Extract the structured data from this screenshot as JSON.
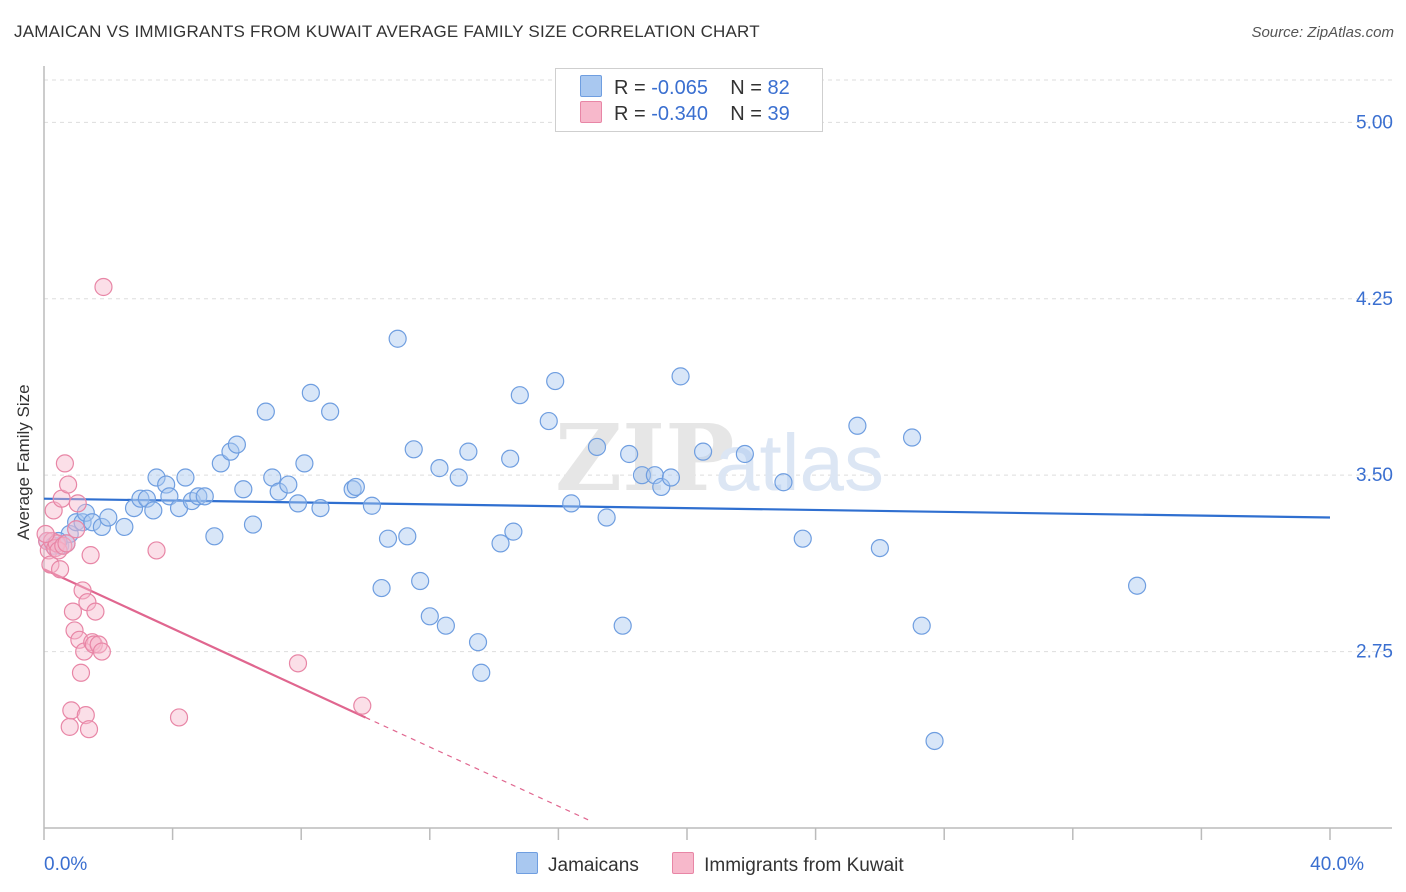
{
  "header": {
    "title": "JAMAICAN VS IMMIGRANTS FROM KUWAIT AVERAGE FAMILY SIZE CORRELATION CHART",
    "source": "Source: ZipAtlas.com"
  },
  "watermark": {
    "zip": "ZIP",
    "atlas": "atlas"
  },
  "legend": {
    "rows": [
      {
        "r_label": "R =",
        "r_value": "-0.065",
        "n_label": "N =",
        "n_value": "82",
        "color": "#a9c8f0"
      },
      {
        "r_label": "R =",
        "r_value": "-0.340",
        "n_label": "N =",
        "n_value": "39",
        "color": "#f7b8cb"
      }
    ]
  },
  "bottom_legend": [
    {
      "label": "Jamaicans",
      "color": "#a9c8f0"
    },
    {
      "label": "Immigrants from Kuwait",
      "color": "#f7b8cb"
    }
  ],
  "colors": {
    "blue_fill": "#a9c8f0",
    "blue_stroke": "#6f9ee0",
    "blue_line": "#2f6fd0",
    "pink_fill": "#f7b8cb",
    "pink_stroke": "#e886a6",
    "pink_line": "#e0668f",
    "tick_text": "#3a6fd0",
    "grid": "#dddddd"
  },
  "chart_data": {
    "type": "scatter",
    "title": "JAMAICAN VS IMMIGRANTS FROM KUWAIT AVERAGE FAMILY SIZE CORRELATION CHART",
    "xlabel": "",
    "ylabel": "Average Family Size",
    "xlim": [
      0,
      40
    ],
    "ylim": [
      2.0,
      5.18
    ],
    "x_tick_labels": [
      {
        "value": 0,
        "label": "0.0%"
      },
      {
        "value": 40,
        "label": "40.0%"
      }
    ],
    "y_ticks": [
      {
        "value": 5.0,
        "label": "5.00"
      },
      {
        "value": 4.25,
        "label": "4.25"
      },
      {
        "value": 3.5,
        "label": "3.50"
      },
      {
        "value": 2.75,
        "label": "2.75"
      }
    ],
    "series": [
      {
        "name": "Jamaicans",
        "r": -0.065,
        "n": 82,
        "trend": {
          "x": [
            0,
            40
          ],
          "y": [
            3.4,
            3.32
          ]
        },
        "points": [
          [
            0.1,
            3.22
          ],
          [
            0.3,
            3.2
          ],
          [
            0.5,
            3.2
          ],
          [
            0.7,
            3.21
          ],
          [
            0.8,
            3.25
          ],
          [
            1.0,
            3.3
          ],
          [
            1.2,
            3.3
          ],
          [
            1.3,
            3.34
          ],
          [
            1.5,
            3.3
          ],
          [
            1.8,
            3.28
          ],
          [
            2.0,
            3.32
          ],
          [
            2.5,
            3.28
          ],
          [
            2.8,
            3.36
          ],
          [
            3.0,
            3.4
          ],
          [
            3.2,
            3.4
          ],
          [
            3.4,
            3.35
          ],
          [
            3.5,
            3.49
          ],
          [
            3.8,
            3.46
          ],
          [
            3.9,
            3.41
          ],
          [
            4.2,
            3.36
          ],
          [
            4.4,
            3.49
          ],
          [
            4.6,
            3.39
          ],
          [
            4.8,
            3.41
          ],
          [
            5.0,
            3.41
          ],
          [
            5.3,
            3.24
          ],
          [
            5.5,
            3.55
          ],
          [
            5.8,
            3.6
          ],
          [
            6.0,
            3.63
          ],
          [
            6.2,
            3.44
          ],
          [
            6.5,
            3.29
          ],
          [
            6.9,
            3.77
          ],
          [
            7.1,
            3.49
          ],
          [
            7.3,
            3.43
          ],
          [
            7.6,
            3.46
          ],
          [
            7.9,
            3.38
          ],
          [
            8.1,
            3.55
          ],
          [
            8.6,
            3.36
          ],
          [
            8.3,
            3.85
          ],
          [
            8.9,
            3.77
          ],
          [
            9.6,
            3.44
          ],
          [
            9.7,
            3.45
          ],
          [
            10.2,
            3.37
          ],
          [
            10.5,
            3.02
          ],
          [
            10.7,
            3.23
          ],
          [
            11.0,
            4.08
          ],
          [
            11.3,
            3.24
          ],
          [
            11.5,
            3.61
          ],
          [
            11.7,
            3.05
          ],
          [
            12.0,
            2.9
          ],
          [
            12.3,
            3.53
          ],
          [
            12.5,
            2.86
          ],
          [
            12.9,
            3.49
          ],
          [
            13.2,
            3.6
          ],
          [
            13.5,
            2.79
          ],
          [
            13.6,
            2.66
          ],
          [
            14.2,
            3.21
          ],
          [
            14.5,
            3.57
          ],
          [
            14.6,
            3.26
          ],
          [
            14.8,
            3.84
          ],
          [
            15.7,
            3.73
          ],
          [
            15.9,
            3.9
          ],
          [
            16.4,
            3.38
          ],
          [
            17.2,
            3.62
          ],
          [
            17.5,
            3.32
          ],
          [
            18.0,
            2.86
          ],
          [
            18.2,
            3.59
          ],
          [
            18.6,
            3.5
          ],
          [
            19.0,
            3.5
          ],
          [
            19.2,
            3.45
          ],
          [
            19.5,
            3.49
          ],
          [
            19.8,
            3.92
          ],
          [
            20.5,
            3.6
          ],
          [
            21.8,
            3.59
          ],
          [
            23.0,
            3.47
          ],
          [
            23.6,
            3.23
          ],
          [
            25.3,
            3.71
          ],
          [
            26.0,
            3.19
          ],
          [
            27.0,
            3.66
          ],
          [
            27.3,
            2.86
          ],
          [
            27.7,
            2.37
          ],
          [
            34.0,
            3.03
          ],
          [
            0.45,
            3.22
          ]
        ]
      },
      {
        "name": "Immigrants from Kuwait",
        "r": -0.34,
        "n": 39,
        "trend": {
          "x": [
            0,
            10
          ],
          "y": [
            3.1,
            2.47
          ]
        },
        "trend_extension": {
          "x": [
            10,
            17.0
          ],
          "y": [
            2.47,
            2.03
          ]
        },
        "points": [
          [
            0.1,
            3.22
          ],
          [
            0.15,
            3.18
          ],
          [
            0.2,
            3.12
          ],
          [
            0.25,
            3.22
          ],
          [
            0.3,
            3.35
          ],
          [
            0.35,
            3.19
          ],
          [
            0.4,
            3.21
          ],
          [
            0.45,
            3.18
          ],
          [
            0.5,
            3.1
          ],
          [
            0.55,
            3.4
          ],
          [
            0.6,
            3.2
          ],
          [
            0.65,
            3.55
          ],
          [
            0.7,
            3.21
          ],
          [
            0.75,
            3.46
          ],
          [
            0.8,
            2.43
          ],
          [
            0.85,
            2.5
          ],
          [
            0.9,
            2.92
          ],
          [
            0.95,
            2.84
          ],
          [
            1.0,
            3.27
          ],
          [
            1.05,
            3.38
          ],
          [
            1.1,
            2.8
          ],
          [
            1.15,
            2.66
          ],
          [
            1.2,
            3.01
          ],
          [
            1.25,
            2.75
          ],
          [
            1.3,
            2.48
          ],
          [
            1.35,
            2.96
          ],
          [
            1.4,
            2.42
          ],
          [
            1.45,
            3.16
          ],
          [
            1.5,
            2.79
          ],
          [
            1.55,
            2.78
          ],
          [
            1.6,
            2.92
          ],
          [
            1.7,
            2.78
          ],
          [
            1.8,
            2.75
          ],
          [
            1.85,
            4.3
          ],
          [
            3.5,
            3.18
          ],
          [
            4.2,
            2.47
          ],
          [
            7.9,
            2.7
          ],
          [
            9.9,
            2.52
          ],
          [
            0.05,
            3.25
          ]
        ]
      }
    ]
  }
}
